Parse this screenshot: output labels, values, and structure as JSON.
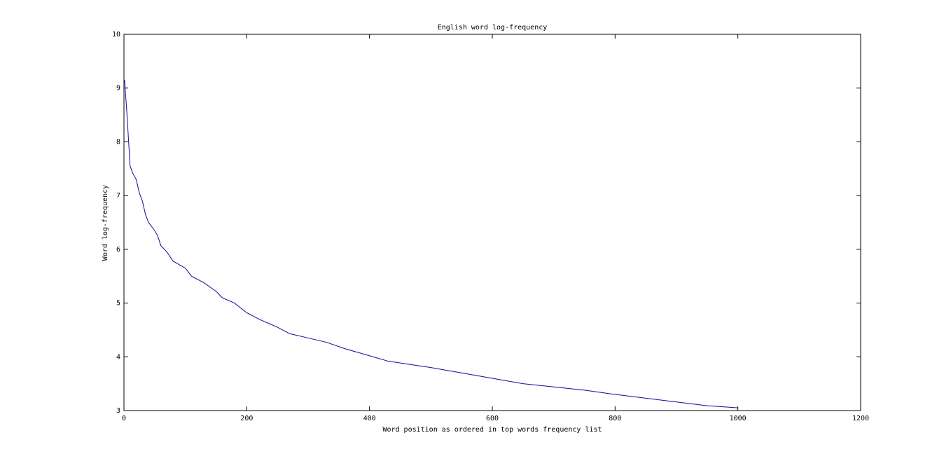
{
  "chart_data": {
    "type": "line",
    "title": "English word log-frequency",
    "x_label": "Word position as ordered in top words frequency list",
    "y_label": "Word log-frequency",
    "x": [
      1,
      5,
      10,
      15,
      20,
      25,
      30,
      35,
      40,
      50,
      55,
      60,
      70,
      80,
      100,
      110,
      130,
      150,
      160,
      180,
      200,
      220,
      250,
      270,
      300,
      330,
      360,
      400,
      430,
      470,
      500,
      550,
      600,
      650,
      700,
      750,
      800,
      850,
      900,
      950,
      1000
    ],
    "values": [
      9.15,
      8.5,
      7.55,
      7.4,
      7.3,
      7.05,
      6.9,
      6.65,
      6.5,
      6.35,
      6.25,
      6.07,
      5.95,
      5.78,
      5.65,
      5.5,
      5.38,
      5.22,
      5.1,
      5.0,
      4.82,
      4.7,
      4.55,
      4.43,
      4.35,
      4.27,
      4.15,
      4.02,
      3.92,
      3.85,
      3.8,
      3.7,
      3.6,
      3.5,
      3.44,
      3.38,
      3.3,
      3.23,
      3.16,
      3.09,
      3.05
    ],
    "color": "#0000ff",
    "xlim": [
      0,
      1200
    ],
    "xticks": [
      0,
      200,
      400,
      600,
      800,
      1000,
      1200
    ],
    "ylim": [
      3,
      10
    ],
    "yticks": [
      3,
      4,
      5,
      6,
      7,
      8,
      9,
      10
    ]
  }
}
